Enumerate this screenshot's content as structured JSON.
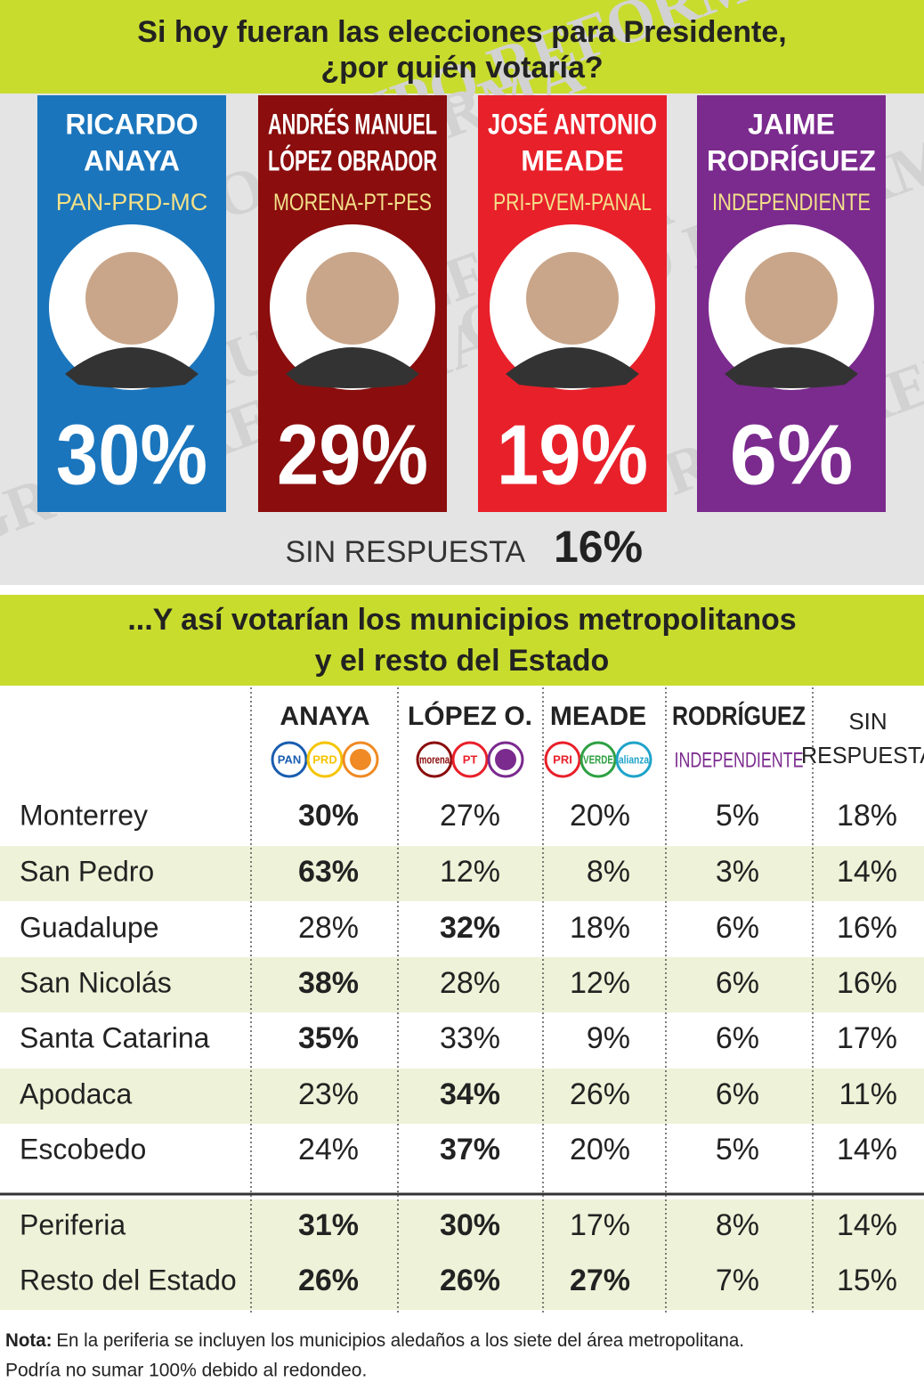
{
  "header": {
    "title": [
      "Si hoy fueran las elecciones para Presidente,",
      "¿por quién votaría?"
    ]
  },
  "watermark": "GRUPO REFORMA",
  "candidates": [
    {
      "name": [
        "RICARDO",
        "ANAYA"
      ],
      "party": "PAN-PRD-MC",
      "percent": "30%",
      "color": "#1a75bc"
    },
    {
      "name": [
        "ANDRÉS MANUEL",
        "LÓPEZ OBRADOR"
      ],
      "party": "MORENA-PT-PES",
      "percent": "29%",
      "color": "#8b0d0d"
    },
    {
      "name": [
        "JOSÉ ANTONIO",
        "MEADE"
      ],
      "party": "PRI-PVEM-PANAL",
      "percent": "19%",
      "color": "#e8202a"
    },
    {
      "name": [
        "JAIME",
        "RODRÍGUEZ"
      ],
      "party": "INDEPENDIENTE",
      "percent": "6%",
      "color": "#7b2a8e"
    }
  ],
  "no_answer": {
    "label": "SIN RESPUESTA",
    "percent": "16%"
  },
  "table": {
    "title": [
      "...Y así votarían los municipios metropolitanos",
      "y el resto del Estado"
    ],
    "columns": [
      {
        "name": [
          "ANAYA"
        ],
        "logos": [
          {
            "text": "PAN",
            "color": "#1a5db0"
          },
          {
            "text": "PRD",
            "color": "#f5c400"
          },
          {
            "color": "#f08a24"
          }
        ]
      },
      {
        "name": [
          "LÓPEZ O."
        ],
        "logos": [
          {
            "text": "morena",
            "color": "#8b0d0d"
          },
          {
            "text": "PT",
            "color": "#e8202a"
          },
          {
            "color": "#7b2a8e"
          }
        ]
      },
      {
        "name": [
          "MEADE"
        ],
        "logos": [
          {
            "text": "PRI",
            "color": "#e8202a"
          },
          {
            "text": "VERDE",
            "color": "#2ea043"
          },
          {
            "text": "alianza",
            "color": "#1fa3c9"
          }
        ]
      },
      {
        "name": [
          "RODRÍGUEZ"
        ],
        "sub": "INDEPENDIENTE"
      },
      {
        "name": [
          "SIN",
          "RESPUESTA"
        ]
      }
    ],
    "rows": [
      {
        "label": "Monterrey",
        "values": [
          "30%",
          "27%",
          "20%",
          "5%",
          "18%"
        ],
        "bold": [
          0
        ]
      },
      {
        "label": "San Pedro",
        "values": [
          "63%",
          "12%",
          "8%",
          "3%",
          "14%"
        ],
        "bold": [
          0
        ]
      },
      {
        "label": "Guadalupe",
        "values": [
          "28%",
          "32%",
          "18%",
          "6%",
          "16%"
        ],
        "bold": [
          1
        ]
      },
      {
        "label": "San Nicolás",
        "values": [
          "38%",
          "28%",
          "12%",
          "6%",
          "16%"
        ],
        "bold": [
          0
        ]
      },
      {
        "label": "Santa Catarina",
        "values": [
          "35%",
          "33%",
          "9%",
          "6%",
          "17%"
        ],
        "bold": [
          0
        ]
      },
      {
        "label": "Apodaca",
        "values": [
          "23%",
          "34%",
          "26%",
          "6%",
          "11%"
        ],
        "bold": [
          1
        ]
      },
      {
        "label": "Escobedo",
        "values": [
          "24%",
          "37%",
          "20%",
          "5%",
          "14%"
        ],
        "bold": [
          1
        ]
      }
    ],
    "summary_rows": [
      {
        "label": "Periferia",
        "values": [
          "31%",
          "30%",
          "17%",
          "8%",
          "14%"
        ],
        "bold": [
          0,
          1
        ]
      },
      {
        "label": "Resto del Estado",
        "values": [
          "26%",
          "26%",
          "27%",
          "7%",
          "15%"
        ],
        "bold": [
          0,
          1,
          2
        ]
      }
    ]
  },
  "footnote": {
    "label": "Nota:",
    "lines": [
      "En la periferia se incluyen los municipios aledaños a los siete del área metropolitana.",
      "Podría no sumar 100% debido al redondeo."
    ]
  }
}
